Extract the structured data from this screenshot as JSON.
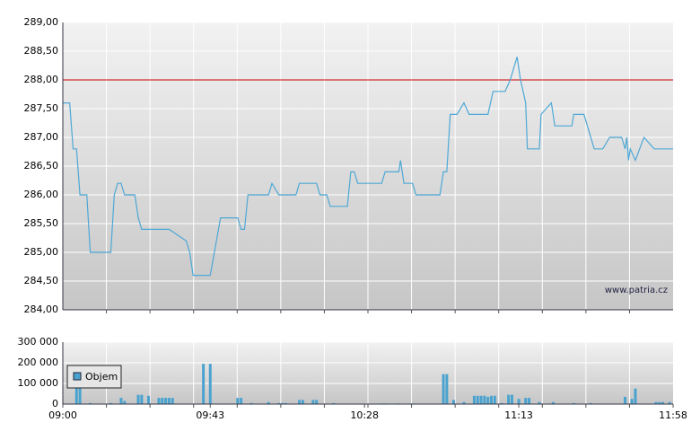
{
  "chart_data": [
    {
      "type": "line",
      "xlim": [
        0,
        178
      ],
      "ylim": [
        284,
        289
      ],
      "yticks": [
        {
          "value": 284,
          "label": "284,00"
        },
        {
          "value": 284.5,
          "label": "284,50"
        },
        {
          "value": 285,
          "label": "285,00"
        },
        {
          "value": 285.5,
          "label": "285,50"
        },
        {
          "value": 286,
          "label": "286,00"
        },
        {
          "value": 286.5,
          "label": "286,50"
        },
        {
          "value": 287,
          "label": "287,00"
        },
        {
          "value": 287.5,
          "label": "287,50"
        },
        {
          "value": 288,
          "label": "288,00"
        },
        {
          "value": 288.5,
          "label": "288,50"
        },
        {
          "value": 289,
          "label": "289,00"
        }
      ],
      "grid": true,
      "reference_line": {
        "value": 288,
        "color": "#cc0000"
      },
      "watermark": "www.patria.cz",
      "series": [
        {
          "color": "#4ea8d6",
          "x": [
            0,
            2,
            3,
            4,
            5,
            7,
            8,
            14,
            15,
            16,
            17,
            18,
            21,
            22,
            23,
            31,
            36,
            37,
            38,
            43,
            46,
            51,
            52,
            53,
            54,
            60,
            61,
            63,
            68,
            69,
            74,
            75,
            77,
            78,
            83,
            84,
            85,
            86,
            93,
            94,
            98,
            98.5,
            99.5,
            102,
            103,
            110,
            111,
            112,
            113,
            115,
            117,
            118.5,
            124,
            125.5,
            129,
            130.5,
            131.5,
            132.5,
            133.5,
            135,
            135.5,
            139,
            139.5,
            142.5,
            143.5,
            148.5,
            149,
            152,
            153,
            155,
            157.5,
            159.5,
            163,
            164,
            164.5,
            165,
            165.5,
            167,
            169.5,
            172.5,
            178
          ],
          "values": [
            287.6,
            287.6,
            286.8,
            286.8,
            286.0,
            286.0,
            285.0,
            285.0,
            286.0,
            286.2,
            286.2,
            286.0,
            286.0,
            285.6,
            285.4,
            285.4,
            285.2,
            285.0,
            284.6,
            284.6,
            285.6,
            285.6,
            285.4,
            285.4,
            286.0,
            286.0,
            286.2,
            286.0,
            286.0,
            286.2,
            286.2,
            286.0,
            286.0,
            285.8,
            285.8,
            286.4,
            286.4,
            286.2,
            286.2,
            286.4,
            286.4,
            286.6,
            286.2,
            286.2,
            286.0,
            286.0,
            286.4,
            286.4,
            287.4,
            287.4,
            287.6,
            287.4,
            287.4,
            287.8,
            287.8,
            288.0,
            288.2,
            288.4,
            288.0,
            287.6,
            286.8,
            286.8,
            287.4,
            287.6,
            287.2,
            287.2,
            287.4,
            287.4,
            287.2,
            286.8,
            286.8,
            287.0,
            287.0,
            286.8,
            287.0,
            286.6,
            286.8,
            286.6,
            287.0,
            286.8,
            286.8
          ]
        }
      ]
    },
    {
      "type": "bar",
      "xlim": [
        0,
        178
      ],
      "xticks": [
        {
          "value": 0,
          "label": "09:00"
        },
        {
          "value": 43,
          "label": "09:43"
        },
        {
          "value": 88,
          "label": "10:28"
        },
        {
          "value": 133,
          "label": "11:13"
        },
        {
          "value": 178,
          "label": "11:58"
        }
      ],
      "ylim": [
        0,
        300000
      ],
      "yticks": [
        {
          "value": 0,
          "label": "0"
        },
        {
          "value": 100000,
          "label": "100 000"
        },
        {
          "value": 200000,
          "label": "200 000"
        },
        {
          "value": 300000,
          "label": "300 000"
        }
      ],
      "grid": true,
      "legend": "top-left",
      "series": [
        {
          "name": "Objem",
          "color": "#4aa3cf",
          "x": [
            4,
            5,
            8,
            14,
            17,
            18,
            22,
            23,
            25,
            28,
            29,
            30,
            31,
            32,
            41,
            43,
            51,
            52,
            55,
            60,
            63,
            64,
            65,
            69,
            70,
            73,
            74,
            79,
            93,
            94,
            98,
            102,
            111,
            112,
            114,
            117,
            120,
            121,
            122,
            123,
            124,
            125,
            126,
            128,
            130,
            131,
            133,
            135,
            136,
            139,
            143,
            149,
            154,
            164,
            166,
            167,
            173,
            174,
            175,
            177
          ],
          "values": [
            160000,
            170000,
            5000,
            5000,
            30000,
            15000,
            45000,
            45000,
            40000,
            30000,
            30000,
            30000,
            30000,
            30000,
            195000,
            195000,
            30000,
            30000,
            5000,
            10000,
            5000,
            5000,
            5000,
            20000,
            20000,
            20000,
            20000,
            5000,
            3000,
            3000,
            3000,
            3000,
            145000,
            145000,
            20000,
            10000,
            40000,
            40000,
            40000,
            40000,
            35000,
            40000,
            40000,
            5000,
            45000,
            45000,
            25000,
            30000,
            30000,
            10000,
            10000,
            5000,
            5000,
            35000,
            25000,
            75000,
            10000,
            10000,
            10000,
            10000
          ]
        }
      ]
    }
  ]
}
